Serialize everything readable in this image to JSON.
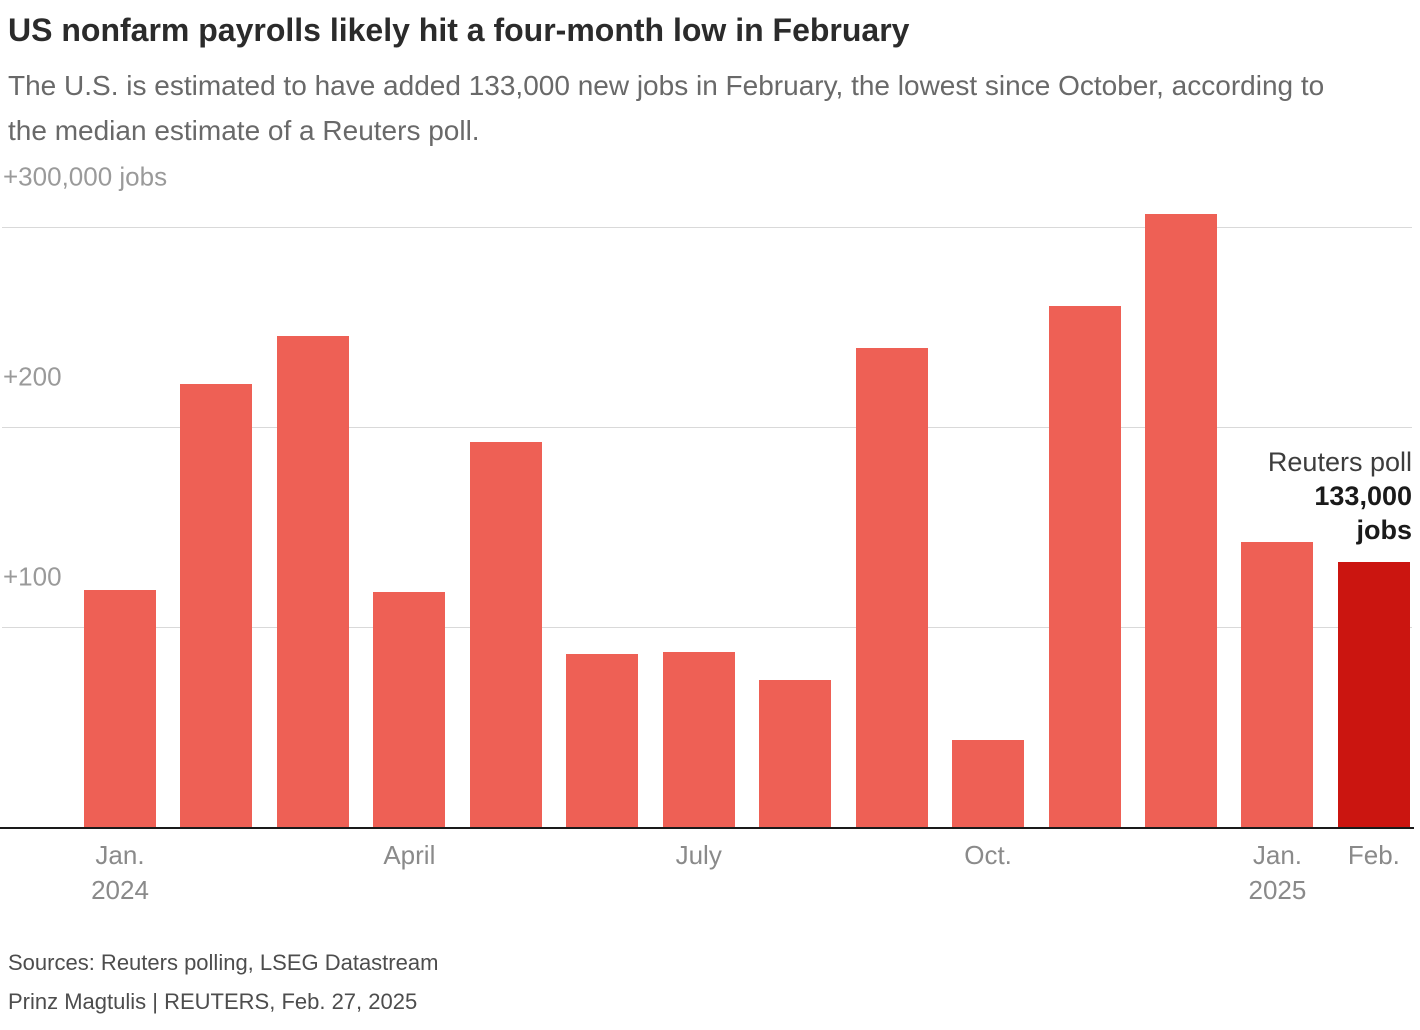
{
  "header": {
    "title": "US nonfarm payrolls likely hit a four-month low in February",
    "subtitle": "The U.S. is estimated to have added 133,000 new jobs in February, the lowest since October, according to the median estimate of a Reuters poll."
  },
  "chart_data": {
    "type": "bar",
    "title": "US nonfarm payrolls likely hit a four-month low in February",
    "unit": "thousands of jobs added per month",
    "categories": [
      "Jan. 2024",
      "Feb. 2024",
      "Mar. 2024",
      "Apr. 2024",
      "May 2024",
      "Jun. 2024",
      "Jul. 2024",
      "Aug. 2024",
      "Sep. 2024",
      "Oct. 2024",
      "Nov. 2024",
      "Dec. 2024",
      "Jan. 2025",
      "Feb. 2025 (Reuters poll estimate)"
    ],
    "values": [
      119,
      222,
      246,
      118,
      193,
      87,
      88,
      74,
      240,
      44,
      261,
      307,
      143,
      133
    ],
    "highlight_index": 13,
    "ylim": [
      0,
      325
    ],
    "grid": true,
    "gridlines": [
      {
        "value": 100,
        "label": "+100"
      },
      {
        "value": 200,
        "label": "+200"
      },
      {
        "value": 300,
        "label": "+300,000 jobs"
      }
    ],
    "x_ticks": [
      {
        "index": 0,
        "lines": [
          "Jan.",
          "2024"
        ]
      },
      {
        "index": 3,
        "lines": [
          "April"
        ]
      },
      {
        "index": 6,
        "lines": [
          "July"
        ]
      },
      {
        "index": 9,
        "lines": [
          "Oct."
        ]
      },
      {
        "index": 12,
        "lines": [
          "Jan.",
          "2025"
        ]
      },
      {
        "index": 13,
        "lines": [
          "Feb."
        ]
      }
    ],
    "colors": {
      "bar": "#ee6055",
      "highlight": "#cb1510",
      "gridline": "#d9d9d9",
      "baseline": "#1a1a1a"
    },
    "annotation": {
      "label": "Reuters poll",
      "value": "133,000",
      "unit": "jobs"
    }
  },
  "footer": {
    "sources": "Sources: Reuters polling, LSEG Datastream",
    "byline": "Prinz Magtulis | REUTERS, Feb. 27, 2025"
  }
}
